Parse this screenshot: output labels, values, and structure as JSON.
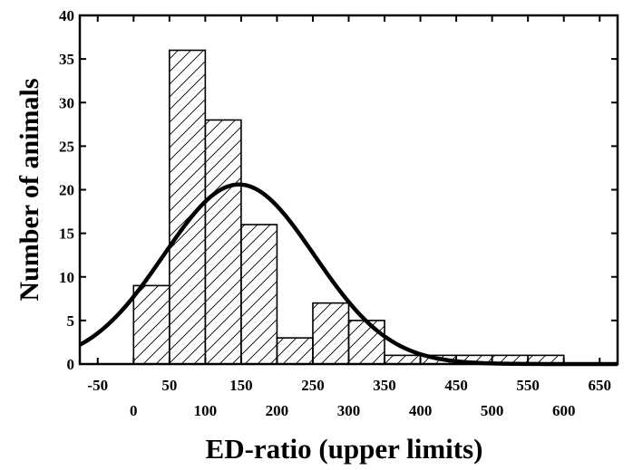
{
  "chart_data": {
    "type": "bar",
    "title": "",
    "xlabel": "ED-ratio (upper limits)",
    "ylabel": "Number of animals",
    "xlim": [
      -75,
      675
    ],
    "ylim": [
      0,
      40
    ],
    "grid": false,
    "bar_fill": "diagonal-hatch",
    "x_ticks_upper": [
      -50,
      50,
      150,
      250,
      350,
      450,
      550,
      650
    ],
    "x_ticks_lower": [
      0,
      100,
      200,
      300,
      400,
      500,
      600
    ],
    "y_ticks": [
      0,
      5,
      10,
      15,
      20,
      25,
      30,
      35,
      40
    ],
    "bins": [
      {
        "start": 0,
        "end": 50,
        "value": 9
      },
      {
        "start": 50,
        "end": 100,
        "value": 36
      },
      {
        "start": 100,
        "end": 150,
        "value": 28
      },
      {
        "start": 150,
        "end": 200,
        "value": 16
      },
      {
        "start": 200,
        "end": 250,
        "value": 3
      },
      {
        "start": 250,
        "end": 300,
        "value": 7
      },
      {
        "start": 300,
        "end": 350,
        "value": 5
      },
      {
        "start": 350,
        "end": 400,
        "value": 1
      },
      {
        "start": 400,
        "end": 450,
        "value": 1
      },
      {
        "start": 450,
        "end": 500,
        "value": 1
      },
      {
        "start": 500,
        "end": 550,
        "value": 1
      },
      {
        "start": 550,
        "end": 600,
        "value": 1
      }
    ],
    "fit_curve": {
      "type": "normal",
      "mean": 147,
      "sd": 105,
      "peak": 20.6
    }
  }
}
